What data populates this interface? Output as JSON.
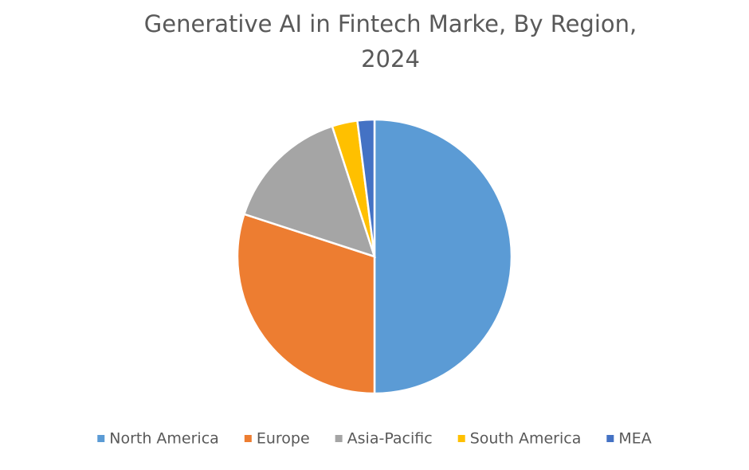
{
  "chart_data": {
    "type": "pie",
    "title": "Generative AI in Fintech Marke, By Region, 2024",
    "categories": [
      "North America",
      "Europe",
      "Asia-Pacific",
      "South America",
      "MEA"
    ],
    "values": [
      50,
      30,
      15,
      3,
      2
    ],
    "colors": [
      "#5b9bd5",
      "#ed7d31",
      "#a5a5a5",
      "#ffc000",
      "#4472c4"
    ],
    "legend": "bottom"
  }
}
